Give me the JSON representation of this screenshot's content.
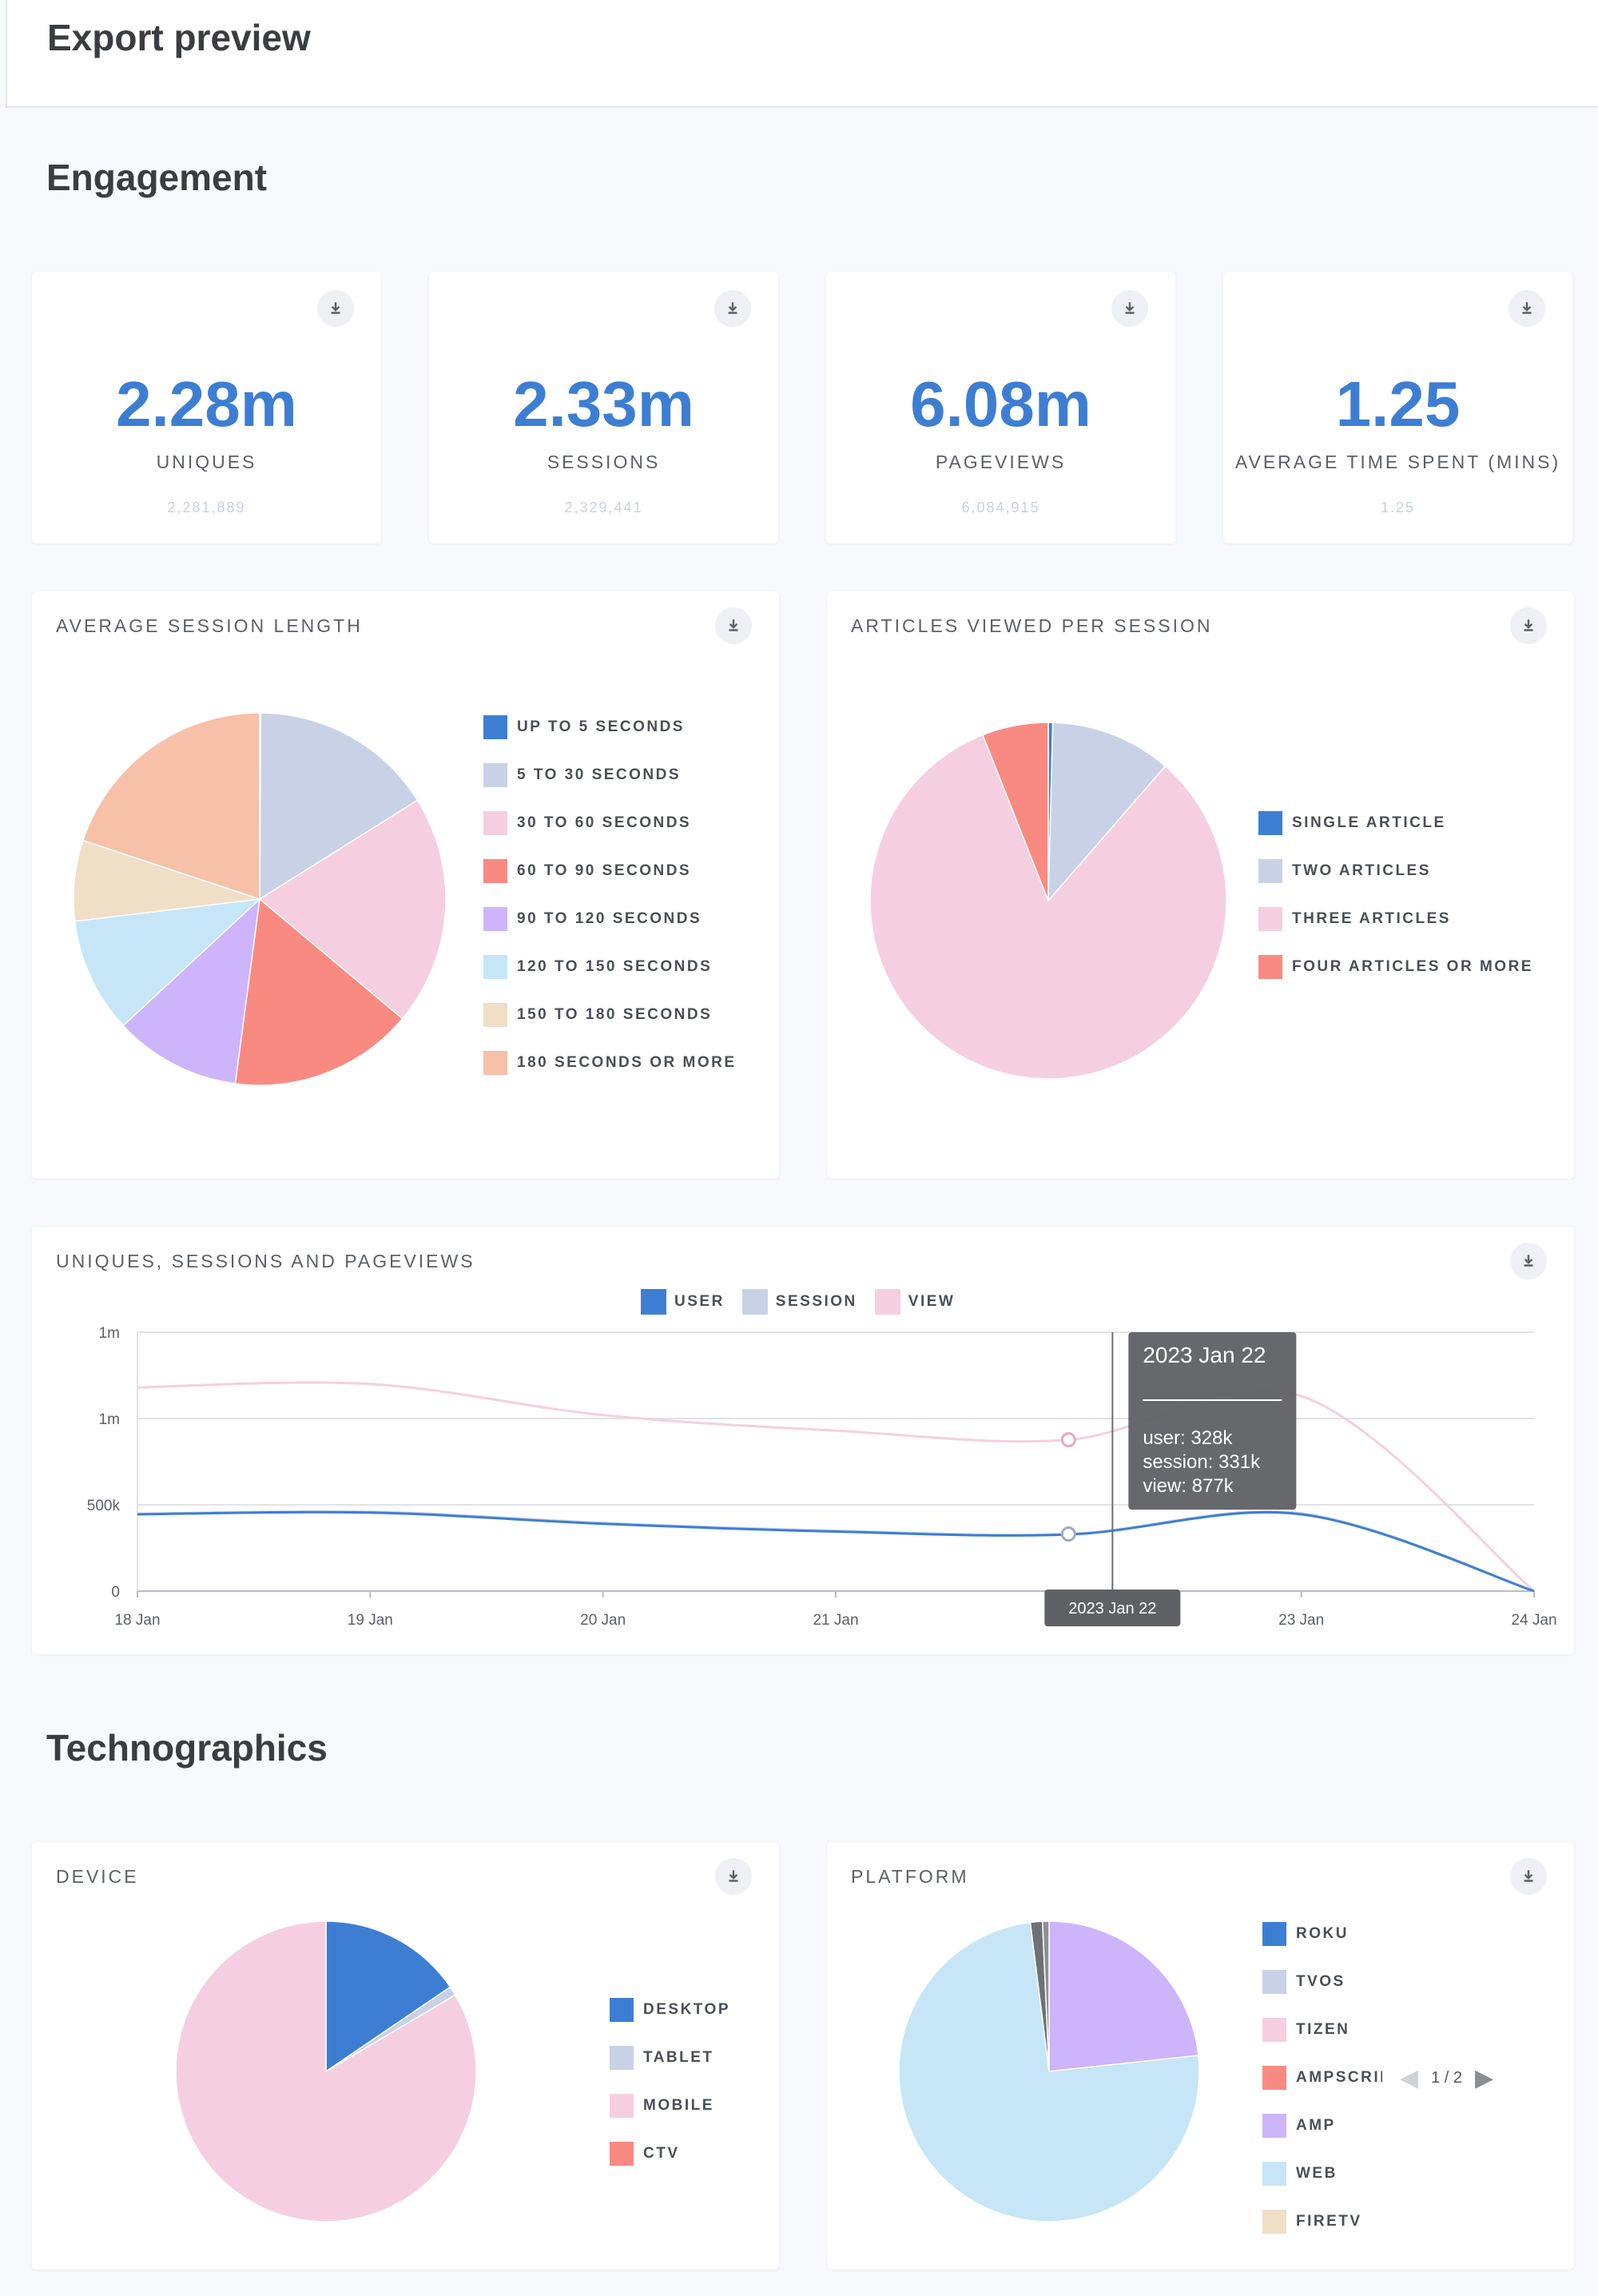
{
  "header": {
    "title": "Export preview"
  },
  "sections": {
    "engagement": "Engagement",
    "technographics": "Technographics"
  },
  "stats": [
    {
      "value": "2.28m",
      "label": "UNIQUES",
      "sub": "2,281,889"
    },
    {
      "value": "2.33m",
      "label": "SESSIONS",
      "sub": "2,329,441"
    },
    {
      "value": "6.08m",
      "label": "PAGEVIEWS",
      "sub": "6,084,915"
    },
    {
      "value": "1.25",
      "label": "AVERAGE TIME SPENT (MINS)",
      "sub": "1.25"
    }
  ],
  "colors": {
    "blue": "#3d7ed3",
    "lavender": "#c9d1e6",
    "pink": "#f5cfe0",
    "red": "#f98a82",
    "purple": "#cdb4fb",
    "lightblue": "#c6e6f7",
    "beige": "#efdfc6",
    "peach": "#f7c0a8",
    "dark": "#6f7176",
    "grey": "#8e9095"
  },
  "chart_data": [
    {
      "type": "pie",
      "title": "AVERAGE SESSION LENGTH",
      "slices": [
        {
          "label": "UP TO 5 SECONDS",
          "value": 0.1,
          "color": "#3d7ed3"
        },
        {
          "label": "5 TO 30 SECONDS",
          "value": 16,
          "color": "#c9d1e6"
        },
        {
          "label": "30 TO 60 SECONDS",
          "value": 20,
          "color": "#f5cfe0"
        },
        {
          "label": "60 TO 90 SECONDS",
          "value": 16,
          "color": "#f98a82"
        },
        {
          "label": "90 TO 120 SECONDS",
          "value": 11,
          "color": "#cdb4fb"
        },
        {
          "label": "120 TO 150 SECONDS",
          "value": 10,
          "color": "#c6e6f7"
        },
        {
          "label": "150 TO 180 SECONDS",
          "value": 7,
          "color": "#efdfc6"
        },
        {
          "label": "180 SECONDS OR MORE",
          "value": 19.9,
          "color": "#f7c0a8"
        }
      ]
    },
    {
      "type": "pie",
      "title": "ARTICLES VIEWED PER SESSION",
      "slices": [
        {
          "label": "SINGLE ARTICLE",
          "value": 0.4,
          "color": "#3d7ed3"
        },
        {
          "label": "TWO ARTICLES",
          "value": 11,
          "color": "#c9d1e6"
        },
        {
          "label": "THREE ARTICLES",
          "value": 82.6,
          "color": "#f5cfe0"
        },
        {
          "label": "FOUR ARTICLES OR MORE",
          "value": 6,
          "color": "#f98a82"
        }
      ]
    },
    {
      "type": "line",
      "title": "UNIQUES, SESSIONS AND PAGEVIEWS",
      "x": [
        "18 Jan",
        "19 Jan",
        "20 Jan",
        "21 Jan",
        "22 Jan",
        "23 Jan",
        "24 Jan"
      ],
      "y_ticks": [
        "0",
        "500k",
        "1m",
        "1m"
      ],
      "ylim": [
        0,
        1500000
      ],
      "series": [
        {
          "name": "USER",
          "color": "#3d7ed3",
          "values": [
            445000,
            455000,
            390000,
            345000,
            328000,
            445000,
            0
          ]
        },
        {
          "name": "SESSION",
          "color": "#c9d1e6",
          "values": [
            448000,
            460000,
            395000,
            350000,
            331000,
            450000,
            0
          ]
        },
        {
          "name": "VIEW",
          "color": "#f5cfe0",
          "values": [
            1180000,
            1200000,
            1020000,
            930000,
            877000,
            1130000,
            0
          ]
        }
      ],
      "tooltip": {
        "title": "2023 Jan 22",
        "lines": [
          "user: 328k",
          "session: 331k",
          "view: 877k"
        ],
        "axis_label": "2023 Jan 22",
        "under_label": "22 Jan"
      }
    },
    {
      "type": "pie",
      "title": "DEVICE",
      "slices": [
        {
          "label": "DESKTOP",
          "value": 15.5,
          "color": "#3d7ed3"
        },
        {
          "label": "TABLET",
          "value": 1,
          "color": "#c9d1e6"
        },
        {
          "label": "MOBILE",
          "value": 83.5,
          "color": "#f5cfe0"
        },
        {
          "label": "CTV",
          "value": 0,
          "color": "#f98a82"
        }
      ]
    },
    {
      "type": "pie",
      "title": "PLATFORM",
      "slices": [
        {
          "label": "ROKU",
          "value": 0,
          "color": "#3d7ed3"
        },
        {
          "label": "TVOS",
          "value": 0,
          "color": "#c9d1e6"
        },
        {
          "label": "TIZEN",
          "value": 0,
          "color": "#f5cfe0"
        },
        {
          "label": "AMPSCRIP",
          "value": 0,
          "color": "#f98a82"
        },
        {
          "label": "AMP",
          "value": 23.3,
          "color": "#cdb4fb"
        },
        {
          "label": "WEB",
          "value": 74.7,
          "color": "#c6e6f7"
        },
        {
          "label": "FIRETV",
          "value": 0,
          "color": "#efdfc6"
        },
        {
          "label": "",
          "value": 1.3,
          "color": "#6f7176"
        },
        {
          "label": "",
          "value": 0.7,
          "color": "#8e9095"
        }
      ],
      "pager": "1 / 2"
    }
  ]
}
